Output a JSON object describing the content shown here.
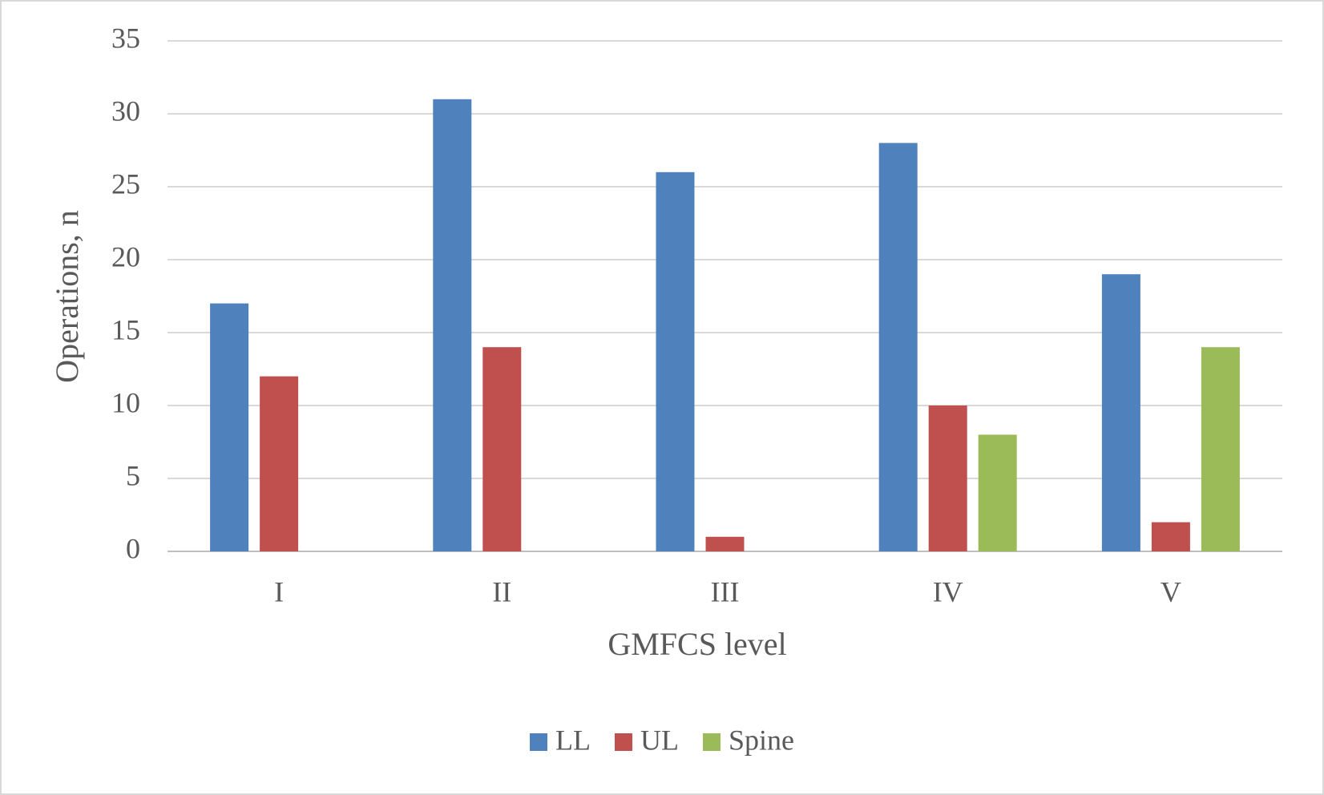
{
  "chart_data": {
    "type": "bar",
    "x_label": "GMFCS level",
    "y_label": "Operations, n",
    "categories": [
      "I",
      "II",
      "III",
      "IV",
      "V"
    ],
    "series": [
      {
        "name": "LL",
        "color": "#4f81bd",
        "values": [
          17,
          31,
          26,
          28,
          19
        ]
      },
      {
        "name": "UL",
        "color": "#c0504d",
        "values": [
          12,
          14,
          1,
          10,
          2
        ]
      },
      {
        "name": "Spine",
        "color": "#9bbb59",
        "values": [
          0,
          0,
          0,
          8,
          14
        ]
      }
    ],
    "ylim": [
      0,
      35
    ],
    "yticks": [
      0,
      5,
      10,
      15,
      20,
      25,
      30,
      35
    ],
    "grid": true,
    "legend": "bottom"
  }
}
